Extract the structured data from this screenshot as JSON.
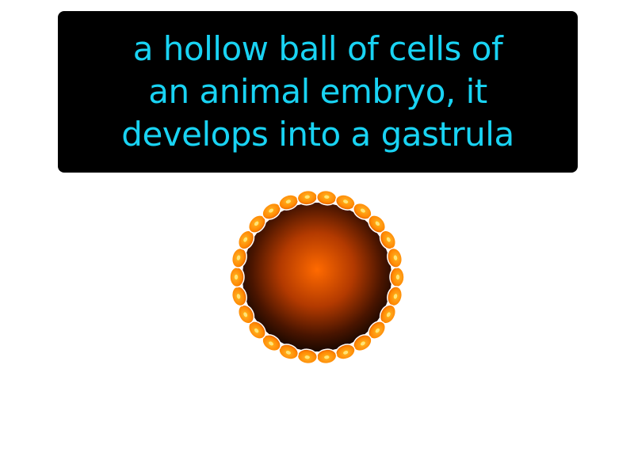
{
  "definition": {
    "lines": [
      "a hollow ball of cells of",
      "an animal embryo, it",
      "develops into a gastrula"
    ]
  },
  "illustration": {
    "icon": "blastula-icon",
    "colors": {
      "text": "#19d3f3",
      "box": "#000000",
      "cell_fill": "#ff8a00",
      "cell_highlight": "#ffe27a",
      "core_center": "#ff6a00",
      "core_edge": "#1a0800"
    }
  }
}
